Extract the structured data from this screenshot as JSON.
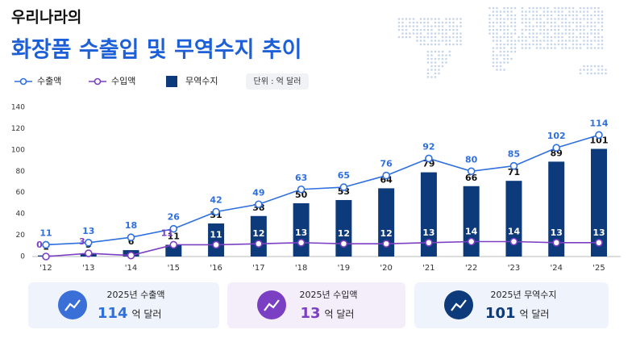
{
  "header": {
    "subtitle": "우리나라의",
    "title": "화장품 수출입 및 무역수지 추이",
    "unit": "단위 : 억 달러"
  },
  "chart_data": {
    "type": "combo",
    "categories": [
      "'12",
      "'13",
      "'14",
      "'15",
      "'16",
      "'17",
      "'18",
      "'19",
      "'20",
      "'21",
      "'22",
      "'23",
      "'24",
      "'25"
    ],
    "series": [
      {
        "name": "수출액",
        "kind": "line",
        "color": "#2f6fde",
        "values": [
          11,
          13,
          18,
          26,
          42,
          49,
          63,
          65,
          76,
          92,
          80,
          85,
          102,
          114
        ]
      },
      {
        "name": "수입액",
        "kind": "line",
        "color": "#7b3fc4",
        "values": [
          0,
          3,
          1,
          11,
          11,
          12,
          13,
          12,
          12,
          13,
          14,
          14,
          13,
          13
        ],
        "value_labels": [
          "0",
          "3",
          null,
          "11",
          "11",
          "12",
          "13",
          "12",
          "12",
          "13",
          "14",
          "14",
          "13",
          "13"
        ]
      },
      {
        "name": "무역수지",
        "kind": "bar",
        "color": "#0d3a7a",
        "values": [
          1,
          3,
          6,
          11,
          31,
          38,
          50,
          53,
          64,
          79,
          66,
          71,
          89,
          101
        ]
      }
    ],
    "ylim": [
      0,
      140
    ],
    "yticks": [
      0,
      20,
      40,
      60,
      80,
      100,
      120,
      140
    ],
    "grid": false
  },
  "cards": [
    {
      "label": "2025년 수출액",
      "value": "114",
      "unit": "억 달러"
    },
    {
      "label": "2025년 수입액",
      "value": "13",
      "unit": "억 달러"
    },
    {
      "label": "2025년 무역수지",
      "value": "101",
      "unit": "억 달러"
    }
  ]
}
